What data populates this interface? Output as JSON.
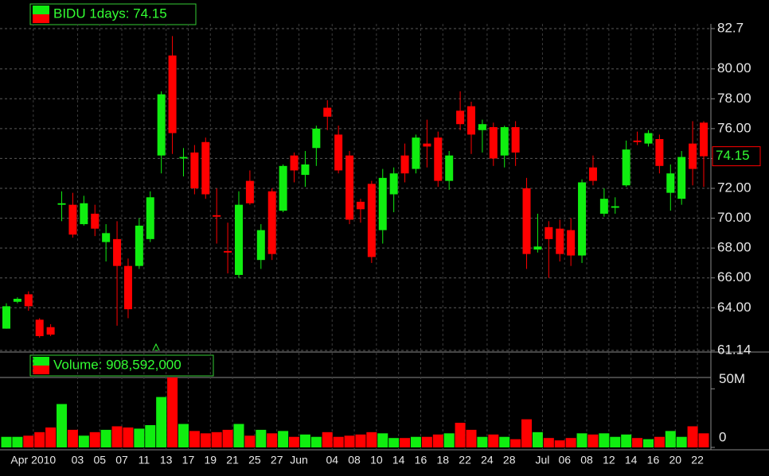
{
  "chart_data": [
    {
      "type": "candlestick",
      "title": "BIDU 1days: 74.15",
      "categories": [
        null,
        null,
        "Apr 2010",
        null,
        null,
        null,
        "03",
        null,
        "05",
        null,
        "07",
        null,
        "11",
        null,
        "13",
        null,
        "17",
        null,
        "19",
        null,
        "21",
        null,
        "25",
        null,
        "27",
        null,
        "Jun",
        null,
        null,
        "04",
        null,
        "08",
        null,
        "10",
        null,
        "14",
        null,
        "16",
        null,
        "18",
        null,
        "22",
        null,
        "24",
        null,
        "28",
        null,
        null,
        "Jul",
        null,
        "06",
        null,
        "08",
        null,
        "12",
        null,
        "14",
        null,
        "16",
        null,
        "20",
        null,
        "22",
        null
      ],
      "open": [
        62.6,
        64.4,
        64.9,
        63.2,
        62.7,
        70.9,
        70.9,
        69.6,
        70.3,
        68.4,
        68.6,
        66.8,
        66.8,
        68.6,
        74.2,
        80.9,
        74.0,
        74.4,
        75.1,
        70.2,
        67.8,
        66.2,
        72.5,
        67.2,
        71.8,
        70.5,
        74.2,
        72.9,
        74.7,
        77.4,
        75.6,
        74.2,
        71.1,
        72.3,
        69.2,
        71.6,
        74.2,
        73.3,
        75.0,
        75.4,
        72.5,
        77.2,
        77.5,
        75.9,
        76.1,
        74.2,
        76.1,
        72.0,
        67.9,
        69.4,
        69.3,
        69.2,
        67.5,
        73.4,
        70.3,
        70.7,
        72.2,
        75.2,
        75.0,
        75.3,
        71.7,
        71.3,
        75.0,
        76.4
      ],
      "high": [
        64.3,
        64.7,
        65.1,
        63.3,
        62.9,
        71.8,
        71.7,
        71.5,
        70.9,
        69.6,
        69.8,
        67.3,
        70.0,
        71.8,
        78.5,
        82.2,
        74.7,
        74.9,
        75.4,
        72.0,
        69.7,
        71.8,
        73.2,
        69.6,
        72.0,
        73.6,
        74.4,
        74.5,
        76.2,
        77.9,
        76.2,
        74.5,
        71.3,
        72.5,
        73.3,
        73.4,
        75.0,
        75.6,
        76.6,
        75.8,
        74.5,
        78.5,
        77.8,
        76.6,
        76.4,
        76.2,
        76.5,
        72.7,
        70.3,
        69.8,
        69.9,
        70.0,
        72.6,
        74.2,
        72.0,
        71.4,
        75.2,
        75.8,
        75.9,
        75.6,
        73.6,
        74.5,
        76.5,
        76.5
      ],
      "low": [
        62.6,
        64.3,
        63.8,
        62.0,
        62.1,
        69.8,
        68.7,
        69.5,
        68.8,
        67.1,
        62.8,
        63.3,
        66.6,
        68.4,
        73.0,
        74.3,
        72.8,
        71.6,
        71.3,
        68.3,
        66.3,
        66.0,
        70.9,
        66.6,
        67.2,
        70.4,
        72.4,
        72.1,
        73.5,
        75.9,
        73.0,
        69.6,
        69.7,
        67.0,
        68.3,
        70.4,
        72.4,
        73.0,
        73.4,
        72.1,
        71.9,
        75.9,
        74.3,
        74.4,
        73.5,
        73.4,
        73.5,
        66.6,
        67.7,
        66.0,
        67.1,
        66.8,
        67.0,
        72.2,
        70.1,
        70.3,
        72.1,
        74.9,
        74.8,
        73.0,
        70.5,
        70.9,
        72.2,
        72.1
      ],
      "close": [
        64.1,
        64.6,
        64.1,
        62.1,
        62.2,
        71.0,
        68.9,
        71.0,
        69.3,
        69.0,
        66.8,
        63.9,
        69.5,
        71.4,
        78.3,
        75.7,
        74.1,
        72.0,
        71.6,
        70.1,
        67.7,
        70.9,
        71.0,
        69.2,
        67.6,
        73.5,
        73.2,
        73.6,
        76.0,
        76.8,
        73.2,
        69.9,
        70.6,
        67.4,
        72.7,
        73.0,
        73.0,
        75.4,
        74.8,
        72.5,
        74.2,
        76.3,
        75.6,
        76.3,
        74.0,
        76.1,
        74.4,
        67.6,
        68.1,
        68.6,
        67.6,
        67.5,
        72.4,
        72.5,
        71.3,
        70.8,
        74.6,
        75.1,
        75.7,
        73.5,
        73.0,
        74.1,
        73.3,
        74.15
      ],
      "ylim": [
        61.14,
        82.7
      ],
      "yticks": [
        61.14,
        {
          "value": 64,
          "label": "64.00"
        },
        {
          "value": 66,
          "label": "66.00"
        },
        {
          "value": 68,
          "label": "68.00"
        },
        {
          "value": 70,
          "label": "70.00"
        },
        {
          "value": 72,
          "label": "72.00"
        },
        {
          "value": 74,
          "label": "74.00"
        },
        {
          "value": 76,
          "label": "76.00"
        },
        {
          "value": 78,
          "label": "78.00"
        },
        {
          "value": 80,
          "label": "80.00"
        },
        82.7
      ],
      "up_color": "#10ee10",
      "down_color": "#ff0000",
      "grid": true
    },
    {
      "type": "bar",
      "title": "Volume: 908,592,000",
      "values": [
        9000000,
        9000000,
        10000000,
        13000000,
        17000000,
        37000000,
        15000000,
        10000000,
        13000000,
        15000000,
        18000000,
        17000000,
        16000000,
        19000000,
        43000000,
        60000000,
        20000000,
        14000000,
        12000000,
        13000000,
        15000000,
        20000000,
        10000000,
        15000000,
        12000000,
        14000000,
        9000000,
        11000000,
        9000000,
        13000000,
        9000000,
        10000000,
        11000000,
        13000000,
        12000000,
        8000000,
        8000000,
        9000000,
        9000000,
        11000000,
        12000000,
        21000000,
        15000000,
        9000000,
        11000000,
        9000000,
        7000000,
        24000000,
        13000000,
        8000000,
        6000000,
        8000000,
        12000000,
        11000000,
        12000000,
        9000000,
        11000000,
        8000000,
        7000000,
        9000000,
        14000000,
        9000000,
        18000000,
        12000000
      ],
      "ylim": [
        0,
        59000000
      ],
      "yticks": [
        0,
        {
          "value": 50000000,
          "label": "50M"
        }
      ]
    }
  ]
}
